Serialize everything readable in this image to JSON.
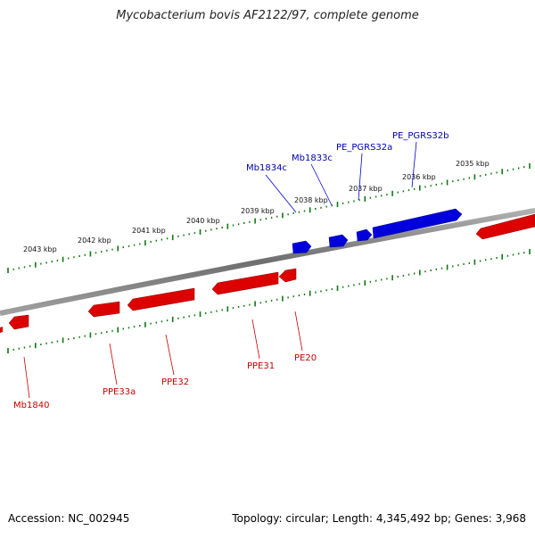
{
  "title": "Mycobacterium bovis AF2122/97, complete genome",
  "footer": {
    "accession": "Accession: NC_002945",
    "summary": "Topology: circular; Length: 4,345,492 bp; Genes: 3,968"
  },
  "colors": {
    "forward_strand": "#0000dd",
    "reverse_strand": "#dd0000",
    "ticks": "#117711",
    "backbone": "#7a7a7a",
    "forward_label": "#0000aa",
    "reverse_label": "#cc0000"
  },
  "scale": {
    "ticks_kbp": [
      {
        "label": "2035 kbp",
        "value": 2035
      },
      {
        "label": "2036 kbp",
        "value": 2036
      },
      {
        "label": "2037 kbp",
        "value": 2037
      },
      {
        "label": "2038 kbp",
        "value": 2038
      },
      {
        "label": "2039 kbp",
        "value": 2039
      },
      {
        "label": "2040 kbp",
        "value": 2040
      },
      {
        "label": "2041 kbp",
        "value": 2041
      },
      {
        "label": "2042 kbp",
        "value": 2042
      },
      {
        "label": "2043 kbp",
        "value": 2043
      }
    ]
  },
  "genes": {
    "forward": [
      {
        "name": "Mb1834c"
      },
      {
        "name": "Mb1833c"
      },
      {
        "name": "PE_PGRS32a"
      },
      {
        "name": "PE_PGRS32b"
      }
    ],
    "reverse": [
      {
        "name": "Mb1840"
      },
      {
        "name": "PPE33a"
      },
      {
        "name": "PPE32"
      },
      {
        "name": "PPE31"
      },
      {
        "name": "PE20"
      }
    ]
  }
}
